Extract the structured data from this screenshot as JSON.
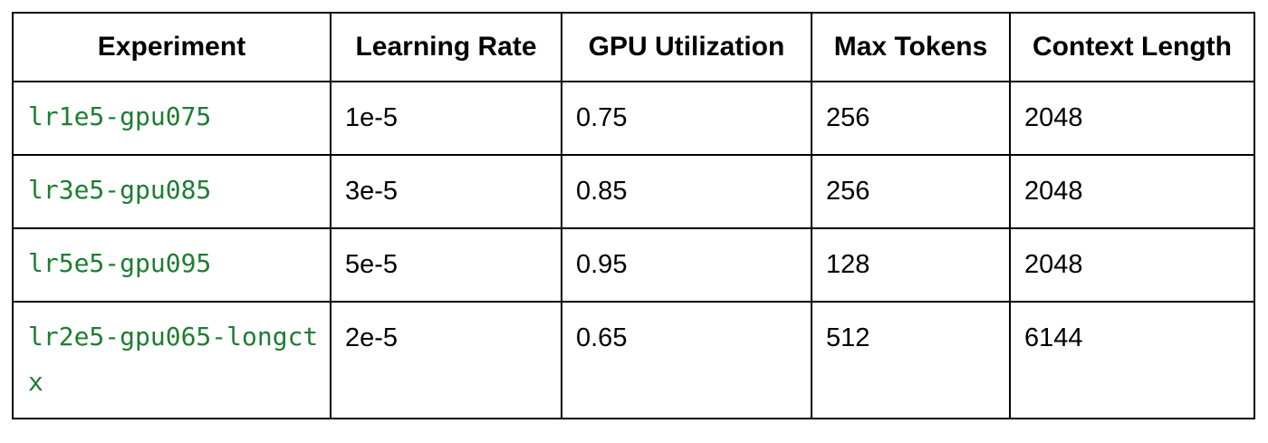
{
  "table": {
    "headers": [
      "Experiment",
      "Learning Rate",
      "GPU Utilization",
      "Max Tokens",
      "Context Length"
    ],
    "rows": [
      [
        "lr1e5-gpu075",
        "1e-5",
        "0.75",
        "256",
        "2048"
      ],
      [
        "lr3e5-gpu085",
        "3e-5",
        "0.85",
        "256",
        "2048"
      ],
      [
        "lr5e5-gpu095",
        "5e-5",
        "0.95",
        "128",
        "2048"
      ],
      [
        "lr2e5-gpu065-longctx",
        "2e-5",
        "0.65",
        "512",
        "6144"
      ]
    ]
  },
  "colors": {
    "experiment_text": "#1e7d32",
    "border": "#000000"
  }
}
